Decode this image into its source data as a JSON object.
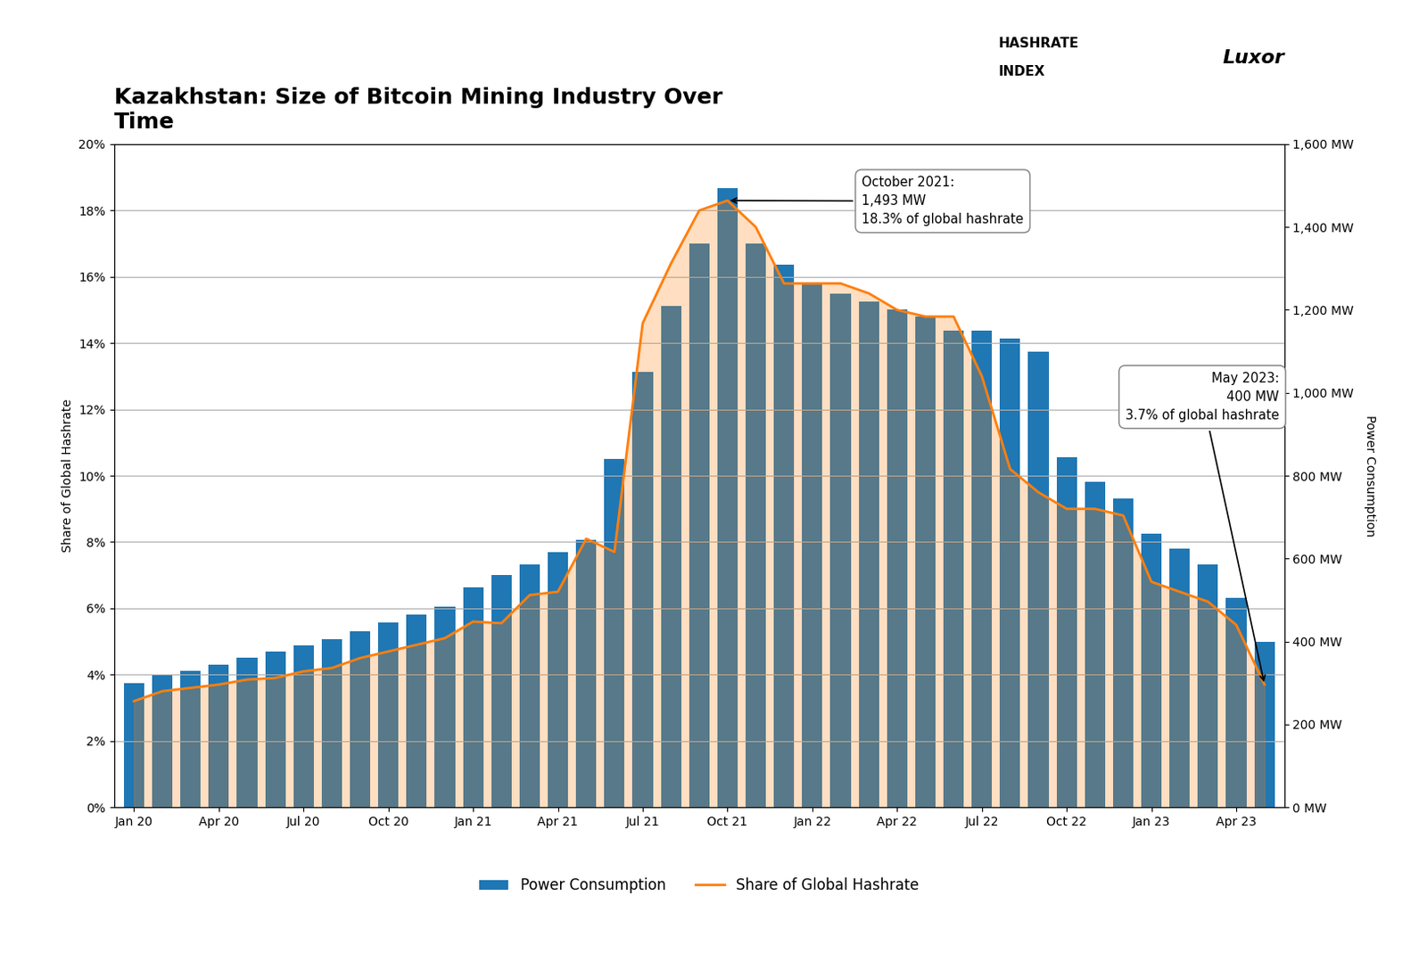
{
  "chart_data": {
    "type": "bar",
    "title": "Kazakhstan: Size of Bitcoin Mining Industry Over\nTime",
    "y_label": "Share of Global Hashrate",
    "y2_label": "Power Consumption",
    "categories": [
      "Jan 20",
      null,
      null,
      "Apr 20",
      null,
      null,
      "Jul 20",
      null,
      null,
      "Oct 20",
      null,
      null,
      "Jan 21",
      null,
      null,
      "Apr 21",
      null,
      null,
      "Jul 21",
      null,
      null,
      "Oct 21",
      null,
      null,
      "Jan 22",
      null,
      null,
      "Apr 22",
      null,
      null,
      "Jul 22",
      null,
      null,
      "Oct 22",
      null,
      null,
      "Jan 23",
      null,
      null,
      "Apr 23",
      null
    ],
    "series": [
      {
        "name": "Power Consumption",
        "type": "bar",
        "axis": "y2",
        "values": [
          300,
          320,
          330,
          345,
          360,
          375,
          390,
          405,
          425,
          445,
          465,
          485,
          530,
          560,
          585,
          615,
          645,
          840,
          1050,
          1210,
          1360,
          1493,
          1360,
          1310,
          1265,
          1240,
          1220,
          1200,
          1185,
          1150,
          1150,
          1130,
          1100,
          845,
          785,
          745,
          660,
          625,
          585,
          505,
          400
        ]
      },
      {
        "name": "Share of Global Hashrate",
        "type": "area",
        "values": [
          3.2,
          3.5,
          3.6,
          3.7,
          3.85,
          3.9,
          4.1,
          4.2,
          4.5,
          4.7,
          4.9,
          5.1,
          5.6,
          5.55,
          6.4,
          6.5,
          8.1,
          7.7,
          14.6,
          16.4,
          18.0,
          18.3,
          17.5,
          15.8,
          15.8,
          15.8,
          15.5,
          15.0,
          14.8,
          14.8,
          13.0,
          10.2,
          9.5,
          9.0,
          9.0,
          8.8,
          6.8,
          6.5,
          6.2,
          5.5,
          3.7
        ]
      }
    ],
    "ylim": [
      0,
      20
    ],
    "yticks": [
      {
        "value": 0,
        "label": "0%"
      },
      {
        "value": 2,
        "label": "2%"
      },
      {
        "value": 4,
        "label": "4%"
      },
      {
        "value": 6,
        "label": "6%"
      },
      {
        "value": 8,
        "label": "8%"
      },
      {
        "value": 10,
        "label": "10%"
      },
      {
        "value": 12,
        "label": "12%"
      },
      {
        "value": 14,
        "label": "14%"
      },
      {
        "value": 16,
        "label": "16%"
      },
      {
        "value": 18,
        "label": "18%"
      },
      {
        "value": 20,
        "label": "20%"
      }
    ],
    "y2lim": [
      0,
      1600
    ],
    "y2ticks": [
      {
        "value": 0,
        "label": "0 MW"
      },
      {
        "value": 200,
        "label": "200 MW"
      },
      {
        "value": 400,
        "label": "400 MW"
      },
      {
        "value": 600,
        "label": "600 MW"
      },
      {
        "value": 800,
        "label": "800 MW"
      },
      {
        "value": 1000,
        "label": "1,000 MW"
      },
      {
        "value": 1200,
        "label": "1,200 MW"
      },
      {
        "value": 1400,
        "label": "1,400 MW"
      },
      {
        "value": 1600,
        "label": "1,600 MW"
      }
    ],
    "grid": true,
    "legend": "lower center",
    "annotations": [
      {
        "text": "October 2021:\n1,493 MW\n18.3% of global hashrate",
        "x": 21,
        "y": 18.3
      },
      {
        "text": "May 2023:\n400 MW\n3.7% of global hashrate",
        "x": 40,
        "y": 3.7
      },
      {
        "text": "HASHRATE"
      },
      {
        "text": "INDEX"
      },
      {
        "text": "Luxor"
      }
    ]
  }
}
